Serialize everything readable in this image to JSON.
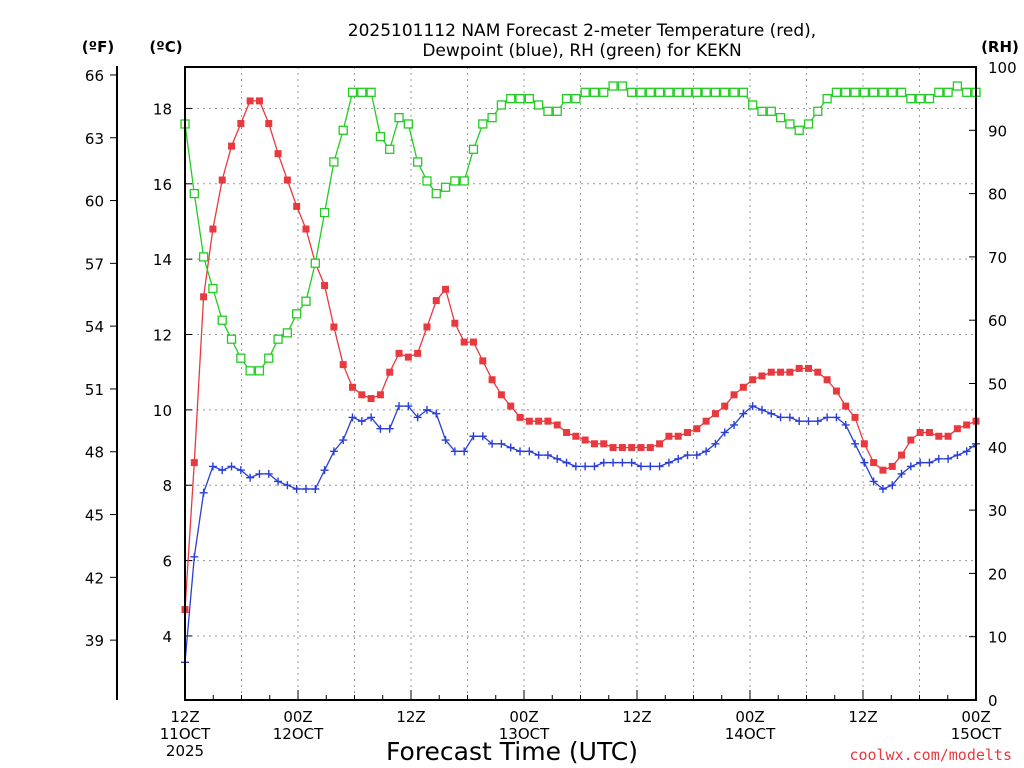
{
  "chart_data": {
    "type": "line",
    "title_lines": [
      "2025101112 NAM Forecast 2-meter Temperature (red),",
      "Dewpoint (blue), RH (green) for KEKN"
    ],
    "unit_labels": {
      "f": "(ºF)",
      "c": "(ºC)",
      "rh": "(RH)"
    },
    "xlabel": "Forecast Time (UTC)",
    "credit": "coolwx.com/modelts",
    "x_range_hours": [
      0,
      84
    ],
    "x_ticks": [
      {
        "hour": 0,
        "lines": [
          "12Z",
          "11OCT",
          "2025"
        ]
      },
      {
        "hour": 12,
        "lines": [
          "00Z",
          "12OCT"
        ]
      },
      {
        "hour": 24,
        "lines": [
          "12Z"
        ]
      },
      {
        "hour": 36,
        "lines": [
          "00Z",
          "13OCT"
        ]
      },
      {
        "hour": 48,
        "lines": [
          "12Z"
        ]
      },
      {
        "hour": 60,
        "lines": [
          "00Z",
          "14OCT"
        ]
      },
      {
        "hour": 72,
        "lines": [
          "12Z"
        ]
      },
      {
        "hour": 84,
        "lines": [
          "00Z",
          "15OCT"
        ]
      }
    ],
    "y_celsius": {
      "range": [
        2.3,
        19.1
      ],
      "ticks": [
        4,
        6,
        8,
        10,
        12,
        14,
        16,
        18
      ]
    },
    "y_fahrenheit": {
      "ticks": [
        39,
        42,
        45,
        48,
        51,
        54,
        57,
        60,
        63,
        66
      ]
    },
    "y_rh": {
      "range": [
        0,
        100
      ],
      "ticks": [
        0,
        10,
        20,
        30,
        40,
        50,
        60,
        70,
        80,
        90,
        100
      ]
    },
    "series": [
      {
        "name": "Temperature",
        "unit": "C",
        "color": "#e8393f",
        "marker": "filled-square",
        "values": [
          4.7,
          8.6,
          13.0,
          14.8,
          16.1,
          17.0,
          17.6,
          18.2,
          18.2,
          17.6,
          16.8,
          16.1,
          15.4,
          14.8,
          13.9,
          13.3,
          12.2,
          11.2,
          10.6,
          10.4,
          10.3,
          10.4,
          11.0,
          11.5,
          11.4,
          11.5,
          12.2,
          12.9,
          13.2,
          12.3,
          11.8,
          11.8,
          11.3,
          10.8,
          10.4,
          10.1,
          9.8,
          9.7,
          9.7,
          9.7,
          9.6,
          9.4,
          9.3,
          9.2,
          9.1,
          9.1,
          9.0,
          9.0,
          9.0,
          9.0,
          9.0,
          9.1,
          9.3,
          9.3,
          9.4,
          9.5,
          9.7,
          9.9,
          10.1,
          10.4,
          10.6,
          10.8,
          10.9,
          11.0,
          11.0,
          11.0,
          11.1,
          11.1,
          11.0,
          10.8,
          10.5,
          10.1,
          9.8,
          9.1,
          8.6,
          8.4,
          8.5,
          8.8,
          9.2,
          9.4,
          9.4,
          9.3,
          9.3,
          9.5,
          9.6,
          9.7
        ]
      },
      {
        "name": "Dewpoint",
        "unit": "C",
        "color": "#2a3fd6",
        "marker": "plus",
        "values": [
          3.3,
          6.1,
          7.8,
          8.5,
          8.4,
          8.5,
          8.4,
          8.2,
          8.3,
          8.3,
          8.1,
          8.0,
          7.9,
          7.9,
          7.9,
          8.4,
          8.9,
          9.2,
          9.8,
          9.7,
          9.8,
          9.5,
          9.5,
          10.1,
          10.1,
          9.8,
          10.0,
          9.9,
          9.2,
          8.9,
          8.9,
          9.3,
          9.3,
          9.1,
          9.1,
          9.0,
          8.9,
          8.9,
          8.8,
          8.8,
          8.7,
          8.6,
          8.5,
          8.5,
          8.5,
          8.6,
          8.6,
          8.6,
          8.6,
          8.5,
          8.5,
          8.5,
          8.6,
          8.7,
          8.8,
          8.8,
          8.9,
          9.1,
          9.4,
          9.6,
          9.9,
          10.1,
          10.0,
          9.9,
          9.8,
          9.8,
          9.7,
          9.7,
          9.7,
          9.8,
          9.8,
          9.6,
          9.1,
          8.6,
          8.1,
          7.9,
          8.0,
          8.3,
          8.5,
          8.6,
          8.6,
          8.7,
          8.7,
          8.8,
          8.9,
          9.1
        ]
      },
      {
        "name": "RH",
        "unit": "%",
        "color": "#22cc22",
        "marker": "open-square",
        "values": [
          91,
          80,
          70,
          65,
          60,
          57,
          54,
          52,
          52,
          54,
          57,
          58,
          61,
          63,
          69,
          77,
          85,
          90,
          96,
          96,
          96,
          89,
          87,
          92,
          91,
          85,
          82,
          80,
          81,
          82,
          82,
          87,
          91,
          92,
          94,
          95,
          95,
          95,
          94,
          93,
          93,
          95,
          95,
          96,
          96,
          96,
          97,
          97,
          96,
          96,
          96,
          96,
          96,
          96,
          96,
          96,
          96,
          96,
          96,
          96,
          96,
          94,
          93,
          93,
          92,
          91,
          90,
          91,
          93,
          95,
          96,
          96,
          96,
          96,
          96,
          96,
          96,
          96,
          95,
          95,
          95,
          96,
          96,
          97,
          96,
          96
        ]
      }
    ]
  }
}
